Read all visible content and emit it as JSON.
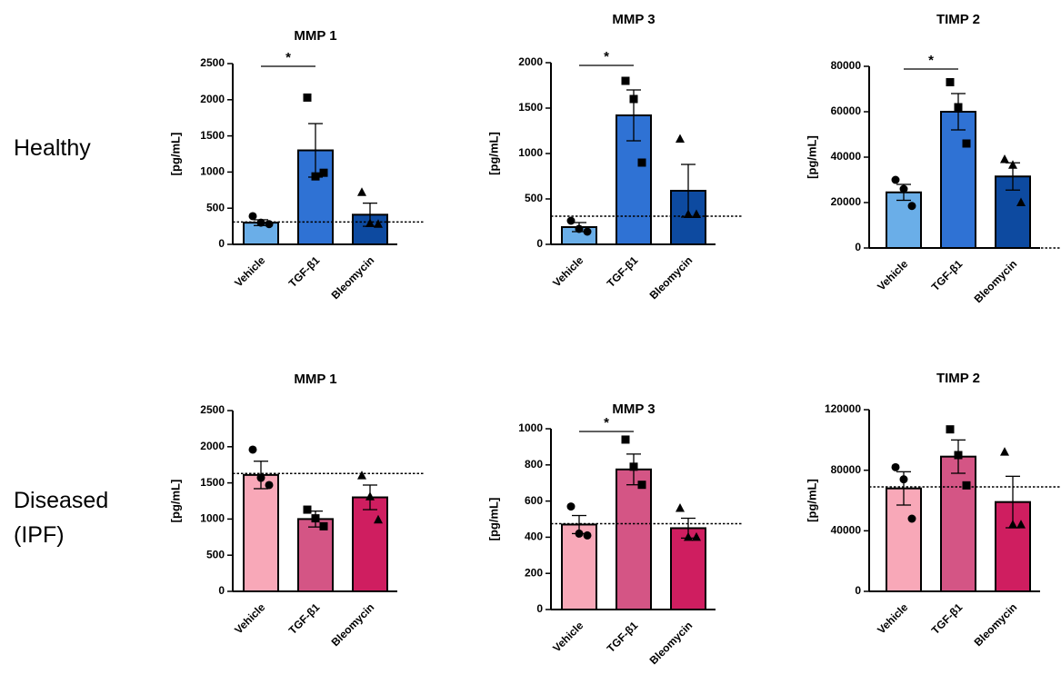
{
  "row_labels": [
    [
      "Healthy"
    ],
    [
      "Diseased",
      "(IPF)"
    ]
  ],
  "chart_data": [
    {
      "type": "bar",
      "title": "MMP 1",
      "ylabel": "[pg/mL]",
      "categories": [
        "Vehicle",
        "TGF-β1",
        "Bleomycin"
      ],
      "values": [
        300,
        1300,
        410
      ],
      "errors": [
        40,
        370,
        160
      ],
      "points": [
        [
          390,
          300,
          280
        ],
        [
          2030,
          940,
          990
        ],
        [
          720,
          290,
          280
        ]
      ],
      "colors": [
        "#6aaee8",
        "#2f72d4",
        "#0d4aa0"
      ],
      "markers": [
        "circle",
        "square",
        "triangle"
      ],
      "reference_line": 310,
      "significance": [
        {
          "between": [
            0,
            1
          ],
          "label": "*"
        }
      ],
      "ylim": [
        0,
        2500
      ],
      "yticks": [
        0,
        500,
        1000,
        1500,
        2000,
        2500
      ]
    },
    {
      "type": "bar",
      "title": "MMP 3",
      "ylabel": "[pg/mL]",
      "categories": [
        "Vehicle",
        "TGF-β1",
        "Bleomycin"
      ],
      "values": [
        190,
        1420,
        590
      ],
      "errors": [
        50,
        280,
        290
      ],
      "points": [
        [
          260,
          170,
          140
        ],
        [
          1800,
          1600,
          900
        ],
        [
          1160,
          330,
          330
        ]
      ],
      "colors": [
        "#6aaee8",
        "#2f72d4",
        "#0d4aa0"
      ],
      "markers": [
        "circle",
        "square",
        "triangle"
      ],
      "reference_line": 310,
      "significance": [
        {
          "between": [
            0,
            1
          ],
          "label": "*"
        }
      ],
      "ylim": [
        0,
        2000
      ],
      "yticks": [
        0,
        500,
        1000,
        1500,
        2000
      ]
    },
    {
      "type": "bar",
      "title": "TIMP 2",
      "ylabel": "[pg/mL]",
      "categories": [
        "Vehicle",
        "TGF-β1",
        "Bleomycin"
      ],
      "values": [
        24500,
        60000,
        31500
      ],
      "errors": [
        3500,
        8000,
        6000
      ],
      "points": [
        [
          30000,
          26000,
          18500
        ],
        [
          73000,
          62000,
          46000
        ],
        [
          39000,
          36500,
          20000
        ]
      ],
      "colors": [
        "#6aaee8",
        "#2f72d4",
        "#0d4aa0"
      ],
      "markers": [
        "circle",
        "square",
        "triangle"
      ],
      "reference_line": 0,
      "significance": [
        {
          "between": [
            0,
            1
          ],
          "label": "*"
        }
      ],
      "ylim": [
        0,
        80000
      ],
      "yticks": [
        0,
        20000,
        40000,
        60000,
        80000
      ]
    },
    {
      "type": "bar",
      "title": "MMP 1",
      "ylabel": "[pg/mL]",
      "categories": [
        "Vehicle",
        "TGF-β1",
        "Bleomycin"
      ],
      "values": [
        1610,
        1000,
        1300
      ],
      "errors": [
        190,
        110,
        170
      ],
      "points": [
        [
          1960,
          1570,
          1470
        ],
        [
          1130,
          1010,
          900
        ],
        [
          1600,
          1310,
          990
        ]
      ],
      "colors": [
        "#f8a8b8",
        "#d45585",
        "#cf1e60"
      ],
      "markers": [
        "circle",
        "square",
        "triangle"
      ],
      "reference_line": 1630,
      "significance": [],
      "ylim": [
        0,
        2500
      ],
      "yticks": [
        0,
        500,
        1000,
        1500,
        2000,
        2500
      ]
    },
    {
      "type": "bar",
      "title": "MMP 3",
      "ylabel": "[pg/mL]",
      "categories": [
        "Vehicle",
        "TGF-β1",
        "Bleomycin"
      ],
      "values": [
        470,
        775,
        450
      ],
      "errors": [
        50,
        85,
        55
      ],
      "points": [
        [
          570,
          420,
          410
        ],
        [
          940,
          790,
          690
        ],
        [
          560,
          400,
          400
        ]
      ],
      "colors": [
        "#f8a8b8",
        "#d45585",
        "#cf1e60"
      ],
      "markers": [
        "circle",
        "square",
        "triangle"
      ],
      "reference_line": 475,
      "significance": [
        {
          "between": [
            0,
            1
          ],
          "label": "*"
        }
      ],
      "ylim": [
        0,
        1000
      ],
      "yticks": [
        0,
        200,
        400,
        600,
        800,
        1000
      ]
    },
    {
      "type": "bar",
      "title": "TIMP 2",
      "ylabel": "[pg/mL]",
      "categories": [
        "Vehicle",
        "TGF-β1",
        "Bleomycin"
      ],
      "values": [
        68000,
        89000,
        59000
      ],
      "errors": [
        11000,
        11000,
        17000
      ],
      "points": [
        [
          82000,
          74000,
          48000
        ],
        [
          107000,
          90000,
          70000
        ],
        [
          92000,
          44000,
          44000
        ]
      ],
      "colors": [
        "#f8a8b8",
        "#d45585",
        "#cf1e60"
      ],
      "markers": [
        "circle",
        "square",
        "triangle"
      ],
      "reference_line": 69000,
      "significance": [],
      "ylim": [
        0,
        120000
      ],
      "yticks": [
        0,
        40000,
        80000,
        120000
      ]
    }
  ]
}
